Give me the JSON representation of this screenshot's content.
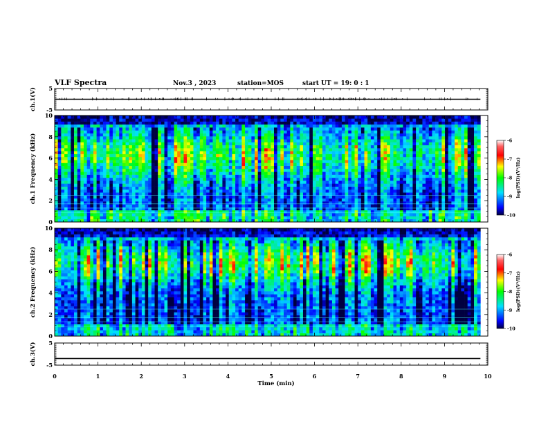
{
  "header": {
    "title": "VLF Spectra",
    "date": "Nov.3 , 2023",
    "station": "station=MOS",
    "start": "start UT =  19: 0 : 1"
  },
  "chart_data": {
    "type": "heatmap",
    "time_axis": {
      "label": "Time (min)",
      "range": [
        0,
        10
      ],
      "ticks": [
        "0",
        "1",
        "2",
        "3",
        "4",
        "5",
        "6",
        "7",
        "8",
        "9",
        "10"
      ],
      "data_extent_min": 9.83
    },
    "panels": [
      {
        "id": "ch1-waveform",
        "type": "line",
        "ylabel": "ch.1(V)",
        "ylim": [
          -5,
          5
        ],
        "yticks": [
          "5",
          "-5"
        ],
        "level": 0
      },
      {
        "id": "ch1-spectrogram",
        "type": "heatmap",
        "ylabel": "ch.1 Frequency (kHz)",
        "ylim": [
          0,
          10
        ],
        "yticks": [
          "0",
          "2",
          "4",
          "6",
          "8",
          "10"
        ],
        "colorbar": {
          "label": "log(PSD)(V²/Hz)",
          "range": [
            -10,
            -6
          ],
          "ticks": [
            "-6",
            "-7",
            "-8",
            "-9",
            "-10"
          ]
        }
      },
      {
        "id": "ch2-spectrogram",
        "type": "heatmap",
        "ylabel": "ch.2 Frequency (kHz)",
        "ylim": [
          0,
          10
        ],
        "yticks": [
          "0",
          "2",
          "4",
          "6",
          "8",
          "10"
        ],
        "colorbar": {
          "label": "log(PSD)(V²/Hz)",
          "range": [
            -10,
            -6
          ],
          "ticks": [
            "-6",
            "-7",
            "-8",
            "-9",
            "-10"
          ]
        }
      },
      {
        "id": "ch3-waveform",
        "type": "line",
        "ylabel": "ch.3(V)",
        "ylim": [
          -5,
          5
        ],
        "yticks": [
          "5",
          "-5"
        ],
        "level": -2
      }
    ]
  }
}
